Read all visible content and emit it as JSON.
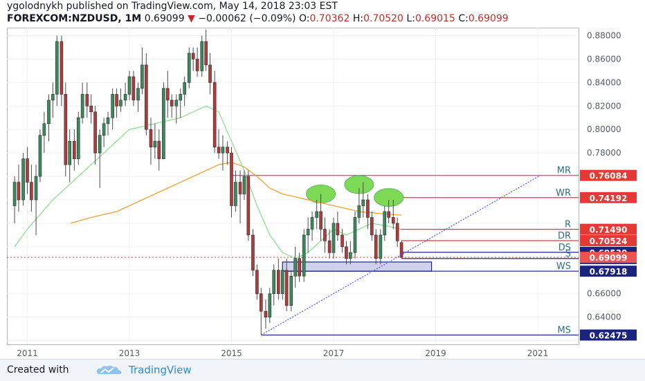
{
  "header": {
    "author": "ygolodnykh",
    "published_text": "published on TradingView.com, May 14, 2018 23:03 EST",
    "symbol": "FOREXCOM:NZDUSD, 1M",
    "last": "0.69099",
    "arrow": "▼",
    "change": "−0.00062 (−0.09%)",
    "o_label": "O:",
    "o_value": "0.70362",
    "h_label": "H:",
    "h_value": "0.70520",
    "l_label": "L:",
    "l_value": "0.69015",
    "c_label": "C:",
    "c_value": "0.69099"
  },
  "footer": {
    "created_with": "Created with",
    "brand": "TradingView"
  },
  "chart_data": {
    "type": "candlestick",
    "title": "FOREXCOM:NZDUSD, 1M",
    "x_range": [
      2010.6,
      2021.8
    ],
    "ylim": [
      0.6168,
      0.8868
    ],
    "grid": true,
    "y_ticks": [
      0.62,
      0.64,
      0.66,
      0.68,
      0.7,
      0.72,
      0.74,
      0.76,
      0.78,
      0.8,
      0.82,
      0.84,
      0.86,
      0.88
    ],
    "y_tick_labels": [
      "0.62000",
      "0.64000",
      "0.66000",
      "0.68000",
      "0.70000",
      "0.72000",
      "0.74000",
      "0.76000",
      "0.78000",
      "0.80000",
      "0.82000",
      "0.84000",
      "0.86000",
      "0.88000"
    ],
    "x_ticks": [
      2011,
      2013,
      2015,
      2017,
      2019,
      2021
    ],
    "x_tick_labels": [
      "2011",
      "2013",
      "2015",
      "2017",
      "2019",
      "2021"
    ],
    "colors": {
      "up": "#3a8a5c",
      "down": "#b23a3a",
      "wick": "#4a4a4a",
      "ma_fast": "#8de08d",
      "ma_slow": "#f0a030",
      "level": "#e53935",
      "support": "#1a237e",
      "trend": "#3d5afe",
      "highlight": "#7ed957",
      "zone": "#c5cae9"
    },
    "candles": [
      [
        2010.75,
        0.735,
        0.76,
        0.72,
        0.755
      ],
      [
        2010.83,
        0.755,
        0.77,
        0.73,
        0.74
      ],
      [
        2010.92,
        0.74,
        0.78,
        0.735,
        0.775
      ],
      [
        2011.0,
        0.775,
        0.785,
        0.745,
        0.755
      ],
      [
        2011.08,
        0.755,
        0.77,
        0.73,
        0.74
      ],
      [
        2011.17,
        0.74,
        0.77,
        0.71,
        0.76
      ],
      [
        2011.25,
        0.76,
        0.8,
        0.755,
        0.795
      ],
      [
        2011.33,
        0.795,
        0.815,
        0.78,
        0.805
      ],
      [
        2011.42,
        0.805,
        0.83,
        0.79,
        0.825
      ],
      [
        2011.5,
        0.825,
        0.84,
        0.81,
        0.83
      ],
      [
        2011.58,
        0.83,
        0.88,
        0.82,
        0.875
      ],
      [
        2011.67,
        0.875,
        0.88,
        0.82,
        0.83
      ],
      [
        2011.75,
        0.83,
        0.84,
        0.76,
        0.77
      ],
      [
        2011.83,
        0.77,
        0.8,
        0.755,
        0.79
      ],
      [
        2011.92,
        0.79,
        0.8,
        0.765,
        0.775
      ],
      [
        2012.0,
        0.775,
        0.815,
        0.77,
        0.81
      ],
      [
        2012.08,
        0.81,
        0.84,
        0.805,
        0.83
      ],
      [
        2012.17,
        0.83,
        0.84,
        0.81,
        0.82
      ],
      [
        2012.25,
        0.82,
        0.83,
        0.805,
        0.815
      ],
      [
        2012.33,
        0.815,
        0.82,
        0.77,
        0.78
      ],
      [
        2012.42,
        0.78,
        0.8,
        0.75,
        0.795
      ],
      [
        2012.5,
        0.795,
        0.81,
        0.785,
        0.805
      ],
      [
        2012.58,
        0.805,
        0.815,
        0.795,
        0.81
      ],
      [
        2012.67,
        0.81,
        0.835,
        0.8,
        0.83
      ],
      [
        2012.75,
        0.83,
        0.835,
        0.81,
        0.82
      ],
      [
        2012.83,
        0.82,
        0.835,
        0.815,
        0.825
      ],
      [
        2012.92,
        0.825,
        0.84,
        0.82,
        0.83
      ],
      [
        2013.0,
        0.83,
        0.85,
        0.825,
        0.845
      ],
      [
        2013.08,
        0.845,
        0.85,
        0.82,
        0.825
      ],
      [
        2013.17,
        0.825,
        0.84,
        0.815,
        0.835
      ],
      [
        2013.25,
        0.835,
        0.87,
        0.83,
        0.855
      ],
      [
        2013.33,
        0.855,
        0.865,
        0.795,
        0.8
      ],
      [
        2013.42,
        0.8,
        0.81,
        0.77,
        0.785
      ],
      [
        2013.5,
        0.785,
        0.805,
        0.775,
        0.79
      ],
      [
        2013.58,
        0.79,
        0.8,
        0.765,
        0.775
      ],
      [
        2013.67,
        0.775,
        0.84,
        0.775,
        0.835
      ],
      [
        2013.75,
        0.835,
        0.85,
        0.81,
        0.825
      ],
      [
        2013.83,
        0.825,
        0.83,
        0.81,
        0.82
      ],
      [
        2013.92,
        0.82,
        0.83,
        0.805,
        0.825
      ],
      [
        2014.0,
        0.825,
        0.835,
        0.81,
        0.83
      ],
      [
        2014.08,
        0.83,
        0.845,
        0.82,
        0.84
      ],
      [
        2014.17,
        0.84,
        0.87,
        0.835,
        0.865
      ],
      [
        2014.25,
        0.865,
        0.87,
        0.85,
        0.86
      ],
      [
        2014.33,
        0.86,
        0.87,
        0.845,
        0.85
      ],
      [
        2014.42,
        0.85,
        0.88,
        0.845,
        0.875
      ],
      [
        2014.5,
        0.875,
        0.885,
        0.85,
        0.855
      ],
      [
        2014.58,
        0.855,
        0.865,
        0.83,
        0.84
      ],
      [
        2014.67,
        0.84,
        0.85,
        0.78,
        0.785
      ],
      [
        2014.75,
        0.785,
        0.8,
        0.775,
        0.78
      ],
      [
        2014.83,
        0.78,
        0.795,
        0.765,
        0.785
      ],
      [
        2014.92,
        0.785,
        0.79,
        0.77,
        0.78
      ],
      [
        2015.0,
        0.78,
        0.785,
        0.725,
        0.735
      ],
      [
        2015.08,
        0.735,
        0.765,
        0.73,
        0.755
      ],
      [
        2015.17,
        0.755,
        0.765,
        0.72,
        0.745
      ],
      [
        2015.25,
        0.745,
        0.765,
        0.74,
        0.76
      ],
      [
        2015.33,
        0.76,
        0.765,
        0.705,
        0.71
      ],
      [
        2015.42,
        0.71,
        0.715,
        0.675,
        0.68
      ],
      [
        2015.5,
        0.68,
        0.685,
        0.655,
        0.66
      ],
      [
        2015.58,
        0.66,
        0.665,
        0.625,
        0.645
      ],
      [
        2015.67,
        0.645,
        0.655,
        0.63,
        0.64
      ],
      [
        2015.75,
        0.64,
        0.665,
        0.635,
        0.66
      ],
      [
        2015.83,
        0.66,
        0.685,
        0.65,
        0.68
      ],
      [
        2015.92,
        0.68,
        0.69,
        0.655,
        0.66
      ],
      [
        2016.0,
        0.66,
        0.685,
        0.655,
        0.68
      ],
      [
        2016.08,
        0.68,
        0.69,
        0.645,
        0.65
      ],
      [
        2016.17,
        0.65,
        0.68,
        0.645,
        0.675
      ],
      [
        2016.25,
        0.675,
        0.7,
        0.665,
        0.69
      ],
      [
        2016.33,
        0.69,
        0.695,
        0.67,
        0.675
      ],
      [
        2016.42,
        0.675,
        0.715,
        0.67,
        0.71
      ],
      [
        2016.5,
        0.71,
        0.725,
        0.695,
        0.715
      ],
      [
        2016.58,
        0.715,
        0.73,
        0.705,
        0.725
      ],
      [
        2016.67,
        0.725,
        0.74,
        0.715,
        0.73
      ],
      [
        2016.75,
        0.73,
        0.745,
        0.705,
        0.715
      ],
      [
        2016.83,
        0.715,
        0.725,
        0.695,
        0.705
      ],
      [
        2016.92,
        0.705,
        0.715,
        0.69,
        0.695
      ],
      [
        2017.0,
        0.695,
        0.725,
        0.69,
        0.72
      ],
      [
        2017.08,
        0.72,
        0.73,
        0.705,
        0.71
      ],
      [
        2017.17,
        0.71,
        0.715,
        0.695,
        0.7
      ],
      [
        2017.25,
        0.7,
        0.705,
        0.685,
        0.69
      ],
      [
        2017.33,
        0.69,
        0.705,
        0.685,
        0.695
      ],
      [
        2017.42,
        0.695,
        0.73,
        0.69,
        0.725
      ],
      [
        2017.5,
        0.725,
        0.75,
        0.72,
        0.735
      ],
      [
        2017.58,
        0.735,
        0.755,
        0.725,
        0.74
      ],
      [
        2017.67,
        0.74,
        0.745,
        0.715,
        0.725
      ],
      [
        2017.75,
        0.725,
        0.73,
        0.705,
        0.71
      ],
      [
        2017.83,
        0.71,
        0.715,
        0.685,
        0.69
      ],
      [
        2017.92,
        0.69,
        0.715,
        0.685,
        0.71
      ],
      [
        2018.0,
        0.71,
        0.735,
        0.705,
        0.73
      ],
      [
        2018.08,
        0.73,
        0.74,
        0.72,
        0.725
      ],
      [
        2018.17,
        0.725,
        0.74,
        0.715,
        0.72
      ],
      [
        2018.25,
        0.72,
        0.725,
        0.7,
        0.705
      ],
      [
        2018.33,
        0.7036,
        0.7052,
        0.6902,
        0.691
      ]
    ],
    "ma_fast": [
      [
        2010.75,
        0.7
      ],
      [
        2011.0,
        0.715
      ],
      [
        2011.5,
        0.74
      ],
      [
        2012.0,
        0.76
      ],
      [
        2012.5,
        0.78
      ],
      [
        2013.0,
        0.8
      ],
      [
        2013.5,
        0.805
      ],
      [
        2014.0,
        0.81
      ],
      [
        2014.5,
        0.82
      ],
      [
        2014.75,
        0.815
      ],
      [
        2015.0,
        0.79
      ],
      [
        2015.25,
        0.765
      ],
      [
        2015.5,
        0.735
      ],
      [
        2015.75,
        0.71
      ],
      [
        2016.0,
        0.695
      ],
      [
        2016.25,
        0.69
      ],
      [
        2016.5,
        0.695
      ],
      [
        2016.75,
        0.705
      ],
      [
        2017.0,
        0.715
      ],
      [
        2017.25,
        0.71
      ],
      [
        2017.5,
        0.715
      ],
      [
        2017.75,
        0.72
      ],
      [
        2018.0,
        0.718
      ],
      [
        2018.33,
        0.715
      ]
    ],
    "ma_slow": [
      [
        2011.85,
        0.72
      ],
      [
        2012.25,
        0.725
      ],
      [
        2012.75,
        0.73
      ],
      [
        2013.25,
        0.74
      ],
      [
        2013.75,
        0.75
      ],
      [
        2014.25,
        0.76
      ],
      [
        2014.75,
        0.77
      ],
      [
        2015.0,
        0.772
      ],
      [
        2015.25,
        0.768
      ],
      [
        2015.5,
        0.76
      ],
      [
        2015.75,
        0.75
      ],
      [
        2016.0,
        0.745
      ],
      [
        2016.5,
        0.74
      ],
      [
        2017.0,
        0.735
      ],
      [
        2017.5,
        0.73
      ],
      [
        2018.0,
        0.728
      ],
      [
        2018.33,
        0.727
      ]
    ],
    "levels": [
      {
        "label": "MR",
        "value": 0.76084,
        "value_label": "0.76084",
        "start": 2015.0,
        "kind": "resistance"
      },
      {
        "label": "WR",
        "value": 0.74192,
        "value_label": "0.74192",
        "start": 2018.25,
        "kind": "resistance"
      },
      {
        "label": "R",
        "value": 0.7149,
        "value_label": "0.71490",
        "start": 2018.3,
        "kind": "resistance"
      },
      {
        "label": "DR",
        "value": 0.70524,
        "value_label": "0.70524",
        "start": 2018.33,
        "kind": "resistance"
      },
      {
        "label": "DS",
        "value": 0.6953,
        "value_label": "0.69530",
        "start": 2018.33,
        "kind": "support"
      },
      {
        "label": "S",
        "value": 0.68998,
        "value_label": "0.68998",
        "start": 2018.33,
        "kind": "support"
      },
      {
        "label": "WS",
        "value": 0.67918,
        "value_label": "0.67918",
        "start": 2016.0,
        "kind": "support"
      },
      {
        "label": "MS",
        "value": 0.62475,
        "value_label": "0.62475",
        "start": 2015.58,
        "kind": "support"
      }
    ],
    "current_price": {
      "value": 0.69099,
      "label": "0.69099"
    },
    "trendline": {
      "from": [
        2015.58,
        0.62475
      ],
      "to": [
        2021.05,
        0.76084
      ]
    },
    "support_zone": {
      "x0": 2016.0,
      "x1": 2018.92,
      "y0": 0.67918,
      "y1": 0.687
    },
    "highlights": [
      {
        "x": 2016.75,
        "y": 0.745
      },
      {
        "x": 2017.5,
        "y": 0.753
      },
      {
        "x": 2018.08,
        "y": 0.742
      }
    ]
  }
}
